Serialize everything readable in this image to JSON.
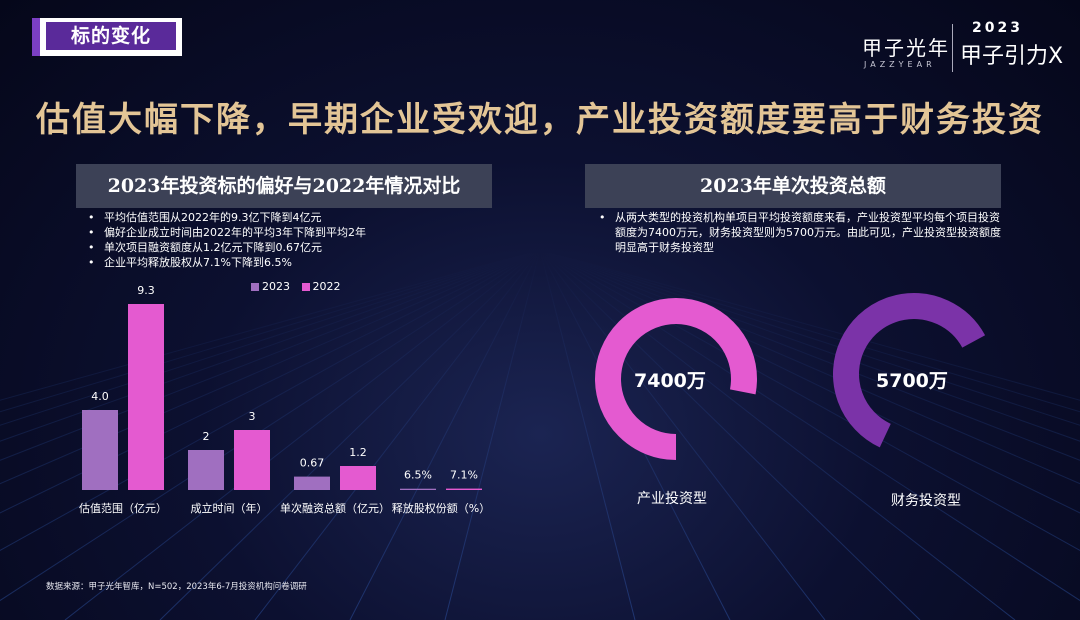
{
  "section_tag": "标的变化",
  "brand": {
    "name": "甲子光年",
    "name_en": "JAZZYEAR",
    "year": "2023",
    "sub": "甲子引力X"
  },
  "headline": "估值大幅下降，早期企业受欢迎，产业投资额度要高于财务投资",
  "left_panel": {
    "title": "2023年投资标的偏好与2022年情况对比",
    "bullets": [
      "平均估值范围从2022年的9.3亿下降到4亿元",
      "偏好企业成立时间由2022年的平均3年下降到平均2年",
      "单次项目融资额度从1.2亿元下降到0.67亿元",
      "企业平均释放股权从7.1%下降到6.5%"
    ]
  },
  "right_panel": {
    "title": "2023年单次投资总额",
    "bullets": [
      "从两大类型的投资机构单项目平均投资额度来看，产业投资型平均每个项目投资额度为7400万元，财务投资型则为5700万元。由此可见，产业投资型投资额度明显高于财务投资型"
    ]
  },
  "chart_data": [
    {
      "type": "bar",
      "categories": [
        "估值范围（亿元）",
        "成立时间（年）",
        "单次融资总额（亿元）",
        "释放股权份额（%）"
      ],
      "series": [
        {
          "name": "2023",
          "values": [
            4.0,
            2,
            0.67,
            6.5
          ],
          "labels": [
            "4.0",
            "2",
            "0.67",
            "6.5%"
          ],
          "color": "#a06fc0",
          "scale_values": [
            4.0,
            2,
            0.67,
            0.065
          ]
        },
        {
          "name": "2022",
          "values": [
            9.3,
            3,
            1.2,
            7.1
          ],
          "labels": [
            "9.3",
            "3",
            "1.2",
            "7.1%"
          ],
          "color": "#e45ad0",
          "scale_values": [
            9.3,
            3,
            1.2,
            0.071
          ]
        }
      ],
      "ylim": [
        0,
        9.3
      ],
      "legend": "top-right"
    },
    {
      "type": "pie",
      "style": "donut",
      "items": [
        {
          "label": "产业投资型",
          "value": 7400,
          "display": "7400万",
          "color": "#e45ad0"
        },
        {
          "label": "财务投资型",
          "value": 5700,
          "display": "5700万",
          "color": "#7b33a8"
        }
      ],
      "max": 7400
    }
  ],
  "source": "数据来源：甲子光年智库，N=502，2023年6-7月投资机构问卷调研"
}
